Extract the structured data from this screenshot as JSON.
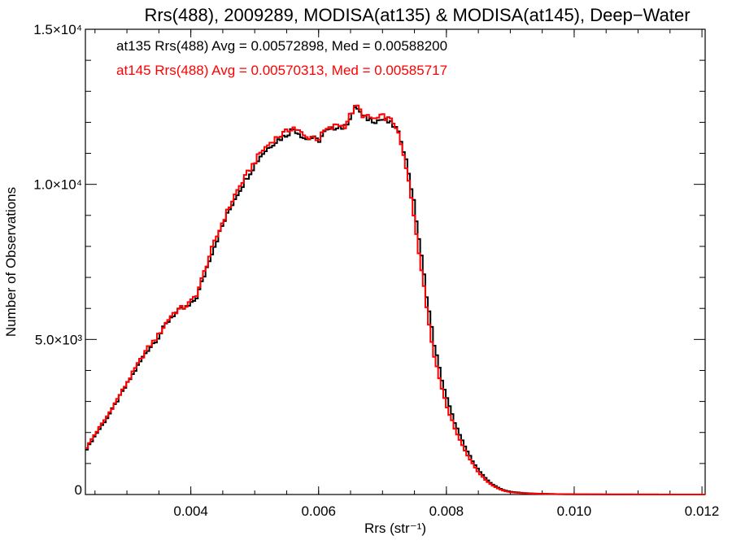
{
  "chart_data": {
    "type": "line",
    "style": "step-histogram",
    "title": "Rrs(488), 2009289, MODISA(at135) & MODISA(at145), Deep−Water",
    "xlabel": "Rrs (str⁻¹)",
    "ylabel": "Number of Observations",
    "xlim": [
      0.00235,
      0.01205
    ],
    "ylim": [
      0,
      15000
    ],
    "x_ticks": [
      {
        "value": 0.004,
        "label": "0.004"
      },
      {
        "value": 0.006,
        "label": "0.006"
      },
      {
        "value": 0.008,
        "label": "0.008"
      },
      {
        "value": 0.01,
        "label": "0.010"
      },
      {
        "value": 0.012,
        "label": "0.012"
      }
    ],
    "y_ticks": [
      {
        "value": 0,
        "label": "0"
      },
      {
        "value": 5000,
        "label": "5.0×10³"
      },
      {
        "value": 10000,
        "label": "1.0×10⁴"
      },
      {
        "value": 15000,
        "label": "1.5×10⁴"
      }
    ],
    "grid": false,
    "annotations": [
      {
        "text": "at135 Rrs(488) Avg = 0.00572898, Med = 0.00588200",
        "color": "#000000"
      },
      {
        "text": "at145 Rrs(488) Avg = 0.00570313, Med = 0.00585717",
        "color": "#ff0000"
      }
    ],
    "series": [
      {
        "color": "#000000",
        "x": [
          0.00235,
          0.0025,
          0.0027,
          0.0029,
          0.0031,
          0.0033,
          0.0035,
          0.0036,
          0.0037,
          0.0038,
          0.0039,
          0.004,
          0.0041,
          0.0042,
          0.0043,
          0.0045,
          0.0047,
          0.0049,
          0.0051,
          0.0053,
          0.0055,
          0.0056,
          0.0057,
          0.0058,
          0.0059,
          0.006,
          0.0061,
          0.0062,
          0.0063,
          0.0064,
          0.0065,
          0.0066,
          0.0067,
          0.0068,
          0.0069,
          0.007,
          0.0071,
          0.0072,
          0.0073,
          0.0074,
          0.0075,
          0.0076,
          0.0077,
          0.0078,
          0.0079,
          0.008,
          0.0081,
          0.0082,
          0.0083,
          0.0084,
          0.0085,
          0.0086,
          0.0087,
          0.0088,
          0.0089,
          0.009,
          0.0092,
          0.0094,
          0.0096,
          0.0098,
          0.01,
          0.0104,
          0.0108,
          0.0112,
          0.0116,
          0.012
        ],
        "values": [
          1400,
          1900,
          2500,
          3200,
          3900,
          4600,
          5100,
          5450,
          5750,
          5900,
          6000,
          6100,
          6400,
          7000,
          7650,
          8700,
          9600,
          10300,
          10950,
          11350,
          11600,
          11800,
          11650,
          11450,
          11500,
          11400,
          11700,
          11750,
          11900,
          11800,
          12200,
          12500,
          12150,
          12100,
          12050,
          12100,
          12000,
          11850,
          11400,
          10500,
          9300,
          7800,
          6300,
          4950,
          3950,
          3150,
          2500,
          1950,
          1500,
          1120,
          800,
          550,
          360,
          230,
          140,
          90,
          50,
          30,
          20,
          12,
          8,
          5,
          3,
          2,
          1,
          0
        ]
      },
      {
        "color": "#ff0000",
        "x": [
          0.00235,
          0.0025,
          0.0027,
          0.0029,
          0.0031,
          0.0033,
          0.0035,
          0.0036,
          0.0037,
          0.0038,
          0.0039,
          0.004,
          0.0041,
          0.0042,
          0.0043,
          0.0045,
          0.0047,
          0.0049,
          0.0051,
          0.0053,
          0.0055,
          0.0056,
          0.0057,
          0.0058,
          0.0059,
          0.006,
          0.0061,
          0.0062,
          0.0063,
          0.0064,
          0.0065,
          0.0066,
          0.0067,
          0.0068,
          0.0069,
          0.007,
          0.0071,
          0.0072,
          0.0073,
          0.0074,
          0.0075,
          0.0076,
          0.0077,
          0.0078,
          0.0079,
          0.008,
          0.0081,
          0.0082,
          0.0083,
          0.0084,
          0.0085,
          0.0086,
          0.0087,
          0.0088,
          0.0089,
          0.009,
          0.0092,
          0.0094,
          0.0096,
          0.0098,
          0.01,
          0.0104,
          0.0108,
          0.0112,
          0.0116,
          0.012
        ],
        "values": [
          1450,
          1950,
          2550,
          3250,
          3950,
          4650,
          5150,
          5500,
          5800,
          5950,
          6050,
          6200,
          6500,
          7100,
          7750,
          8800,
          9700,
          10400,
          11050,
          11450,
          11700,
          11850,
          11700,
          11500,
          11550,
          11450,
          11750,
          11800,
          11950,
          11850,
          12250,
          12550,
          12200,
          12150,
          12100,
          12200,
          12100,
          11950,
          11200,
          10200,
          8900,
          7400,
          5900,
          4600,
          3650,
          2900,
          2300,
          1800,
          1380,
          1020,
          720,
          490,
          320,
          200,
          120,
          75,
          42,
          25,
          16,
          10,
          6,
          4,
          2,
          1,
          1,
          0
        ]
      }
    ]
  }
}
